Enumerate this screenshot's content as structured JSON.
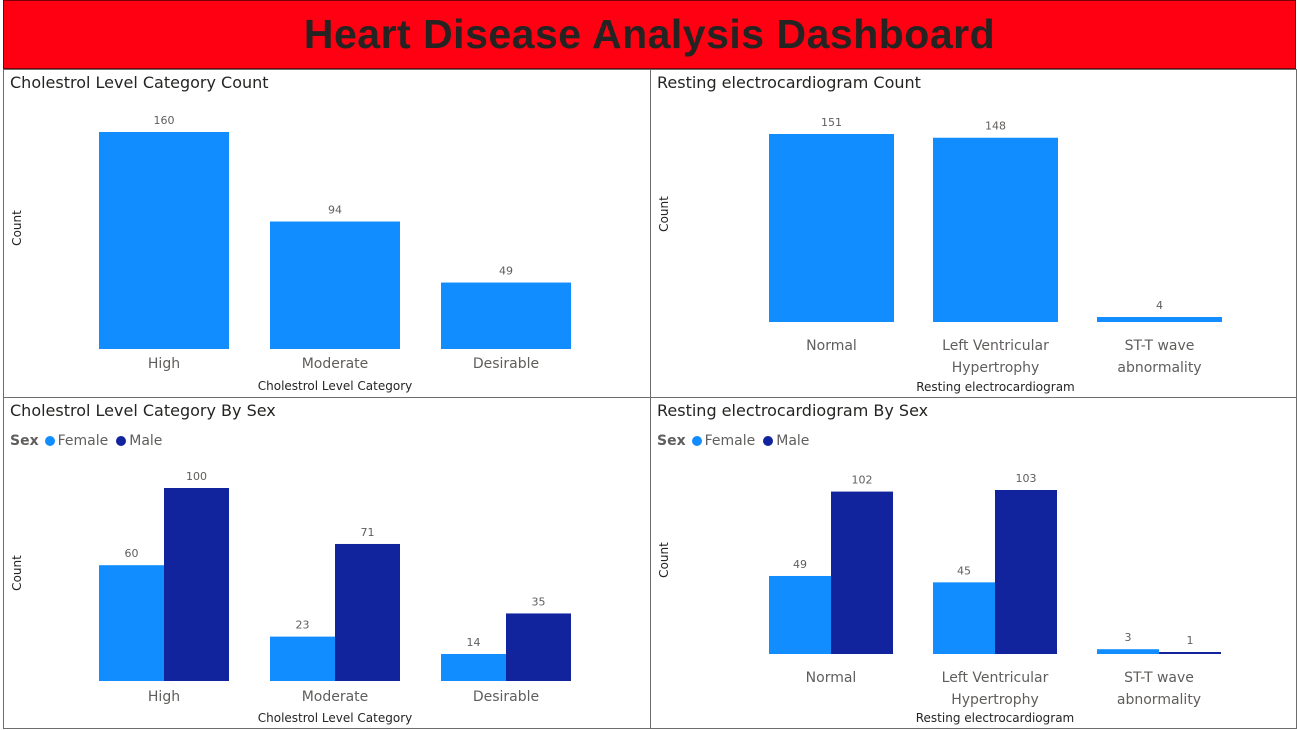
{
  "dashboard": {
    "title": "Heart Disease Analysis Dashboard"
  },
  "colors": {
    "banner": "#ff0013",
    "female": "#118dff",
    "male": "#12239e",
    "single": "#118dff"
  },
  "chart_data": [
    {
      "id": "p1",
      "type": "bar",
      "title": "Cholestrol Level Category Count",
      "xlabel": "Cholestrol Level Category",
      "ylabel": "Count",
      "categories": [
        [
          "High"
        ],
        [
          "Moderate"
        ],
        [
          "Desirable"
        ]
      ],
      "series": [
        {
          "values": [
            160,
            94,
            49
          ]
        }
      ],
      "ylim": [
        0,
        160
      ]
    },
    {
      "id": "p2",
      "type": "bar",
      "title": "Resting electrocardiogram Count",
      "xlabel": "Resting electrocardiogram",
      "ylabel": "Count",
      "categories": [
        [
          "Normal"
        ],
        [
          "Left Ventricular",
          "Hypertrophy"
        ],
        [
          "ST-T wave",
          "abnormality"
        ]
      ],
      "series": [
        {
          "values": [
            151,
            148,
            4
          ]
        }
      ],
      "ylim": [
        0,
        151
      ]
    },
    {
      "id": "p3",
      "type": "bar",
      "title": "Cholestrol Level Category By Sex",
      "xlabel": "Cholestrol Level Category",
      "ylabel": "Count",
      "legend": {
        "title": "Sex",
        "position": "top-left"
      },
      "categories": [
        [
          "High"
        ],
        [
          "Moderate"
        ],
        [
          "Desirable"
        ]
      ],
      "series": [
        {
          "name": "Female",
          "values": [
            60,
            23,
            14
          ]
        },
        {
          "name": "Male",
          "values": [
            100,
            71,
            35
          ]
        }
      ],
      "ylim": [
        0,
        100
      ]
    },
    {
      "id": "p4",
      "type": "bar",
      "title": "Resting electrocardiogram By Sex",
      "xlabel": "Resting electrocardiogram",
      "ylabel": "Count",
      "legend": {
        "title": "Sex",
        "position": "top-left"
      },
      "categories": [
        [
          "Normal"
        ],
        [
          "Left Ventricular",
          "Hypertrophy"
        ],
        [
          "ST-T wave",
          "abnormality"
        ]
      ],
      "series": [
        {
          "name": "Female",
          "values": [
            49,
            45,
            3
          ]
        },
        {
          "name": "Male",
          "values": [
            102,
            103,
            1
          ]
        }
      ],
      "ylim": [
        0,
        103
      ]
    }
  ]
}
